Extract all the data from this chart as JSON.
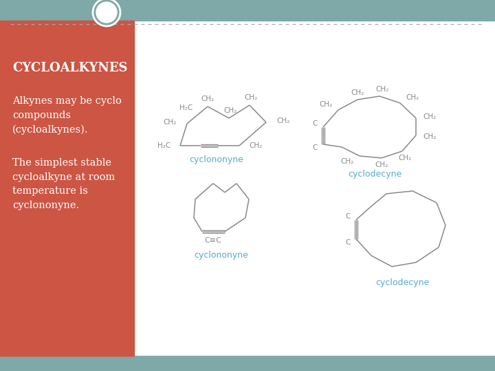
{
  "bg_top_color": "#7fa8a8",
  "bg_left_color": "#cc5544",
  "bg_right_color": "#ffffff",
  "title": "CYCLOALKYNES",
  "title_color": "#ffffff",
  "title_fontsize": 13,
  "text1": "Alkynes may be cyclo\ncompounds\n(cycloalkynes).",
  "text2": "The simplest stable\ncycloalkyne at room\ntemperature is\ncyclononyne.",
  "text_color": "#ffffff",
  "text_fontsize": 10.5,
  "label_color": "#55aacc",
  "label_fontsize": 9,
  "bond_color": "#888888",
  "circle_color": "#7fa8a8",
  "dashed_line_color": "#aaaaaa"
}
